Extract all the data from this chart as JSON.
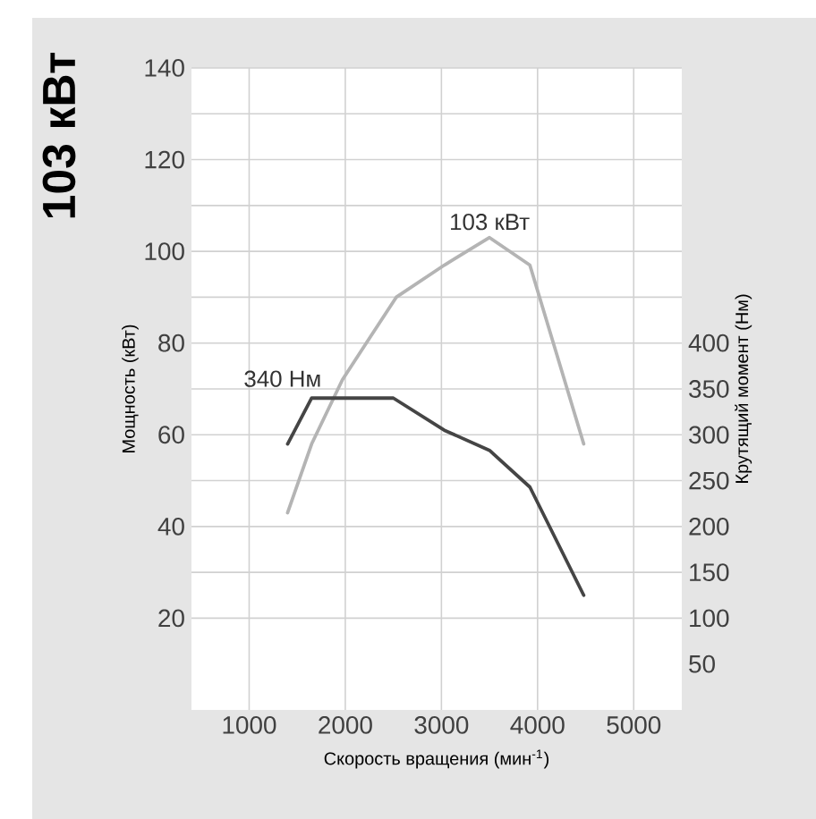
{
  "chart_data": {
    "type": "line",
    "title": "103 кВт",
    "xlabel": "Скорость вращения (мин$^{-1}$)",
    "ylabel": "Мощность (кВт)",
    "y2label": "Крутящий момент (Нм)",
    "xlim": [
      400,
      5500
    ],
    "xticks": [
      1000,
      2000,
      3000,
      4000,
      5000
    ],
    "ylim": [
      0,
      140
    ],
    "yticks": [
      20,
      40,
      60,
      80,
      100,
      120,
      140
    ],
    "y2lim": [
      0,
      700
    ],
    "y2ticks": [
      50,
      100,
      150,
      200,
      250,
      300,
      350,
      400
    ],
    "grid": true,
    "series": [
      {
        "color": "#b4b4b4",
        "x": [
          1400,
          1650,
          1970,
          2250,
          2530,
          3030,
          3500,
          3920,
          4480
        ],
        "values": [
          43,
          58,
          72,
          81,
          90,
          97,
          103,
          97,
          58
        ]
      },
      {
        "color": "#454545",
        "axis": "y2",
        "x": [
          1400,
          1650,
          2500,
          3030,
          3500,
          3920,
          4480
        ],
        "values": [
          290,
          340,
          340,
          305,
          283,
          243,
          125
        ]
      }
    ],
    "annotations": [
      {
        "text": "103 кВт",
        "x": 3500,
        "y": 103
      },
      {
        "text": "340 Нм",
        "x": 1700,
        "y": 68
      }
    ]
  }
}
